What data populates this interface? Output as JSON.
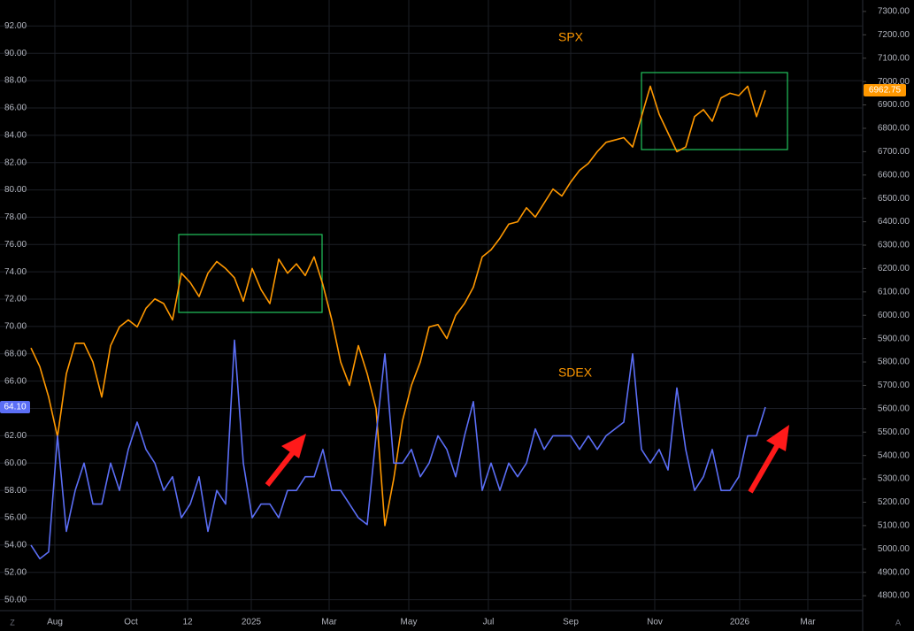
{
  "chart_data": {
    "type": "line",
    "x": [
      0,
      1,
      2,
      3,
      4,
      5,
      6,
      7,
      8,
      9,
      10,
      11,
      12,
      13,
      14,
      15,
      16,
      17,
      18,
      19,
      20,
      21,
      22,
      23,
      24,
      25,
      26,
      27,
      28,
      29,
      30,
      31,
      32,
      33,
      34,
      35,
      36,
      37,
      38,
      39,
      40,
      41,
      42,
      43,
      44,
      45,
      46,
      47,
      48,
      49,
      50,
      51,
      52,
      53,
      54,
      55,
      56,
      57,
      58,
      59,
      60,
      61,
      62,
      63,
      64,
      65,
      66,
      67,
      68,
      69,
      70,
      71,
      72,
      73,
      74,
      75,
      76,
      77,
      78,
      79,
      80,
      81,
      82,
      83
    ],
    "xlim": [
      -3.5,
      94
    ],
    "xticks": [
      {
        "value": 2.7,
        "label": "Aug"
      },
      {
        "value": 11.3,
        "label": "Oct"
      },
      {
        "value": 17.7,
        "label": "12"
      },
      {
        "value": 24.9,
        "label": "2025"
      },
      {
        "value": 33.7,
        "label": "Mar"
      },
      {
        "value": 42.7,
        "label": "May"
      },
      {
        "value": 51.7,
        "label": "Jul"
      },
      {
        "value": 61,
        "label": "Sep"
      },
      {
        "value": 70.5,
        "label": "Nov"
      },
      {
        "value": 80.1,
        "label": "2026"
      },
      {
        "value": 87.8,
        "label": "Mar"
      }
    ],
    "ylim": [
      49.2,
      93.9
    ],
    "yticks": [
      {
        "value": 50,
        "label": "50.00"
      },
      {
        "value": 52,
        "label": "52.00"
      },
      {
        "value": 54,
        "label": "54.00"
      },
      {
        "value": 56,
        "label": "56.00"
      },
      {
        "value": 58,
        "label": "58.00"
      },
      {
        "value": 60,
        "label": "60.00"
      },
      {
        "value": 62,
        "label": "62.00"
      },
      {
        "value": 64,
        "label": "64.00"
      },
      {
        "value": 66,
        "label": "66.00"
      },
      {
        "value": 68,
        "label": "68.00"
      },
      {
        "value": 70,
        "label": "70.00"
      },
      {
        "value": 72,
        "label": "72.00"
      },
      {
        "value": 74,
        "label": "74.00"
      },
      {
        "value": 76,
        "label": "76.00"
      },
      {
        "value": 78,
        "label": "78.00"
      },
      {
        "value": 80,
        "label": "80.00"
      },
      {
        "value": 82,
        "label": "82.00"
      },
      {
        "value": 84,
        "label": "84.00"
      },
      {
        "value": 86,
        "label": "86.00"
      },
      {
        "value": 88,
        "label": "88.00"
      },
      {
        "value": 90,
        "label": "90.00"
      },
      {
        "value": 92,
        "label": "92.00"
      }
    ],
    "y2lim": [
      4736,
      7349
    ],
    "y2ticks": [
      {
        "value": 4800,
        "label": "4800.00"
      },
      {
        "value": 4900,
        "label": "4900.00"
      },
      {
        "value": 5000,
        "label": "5000.00"
      },
      {
        "value": 5100,
        "label": "5100.00"
      },
      {
        "value": 5200,
        "label": "5200.00"
      },
      {
        "value": 5300,
        "label": "5300.00"
      },
      {
        "value": 5400,
        "label": "5400.00"
      },
      {
        "value": 5500,
        "label": "5500.00"
      },
      {
        "value": 5600,
        "label": "5600.00"
      },
      {
        "value": 5700,
        "label": "5700.00"
      },
      {
        "value": 5800,
        "label": "5800.00"
      },
      {
        "value": 5900,
        "label": "5900.00"
      },
      {
        "value": 6000,
        "label": "6000.00"
      },
      {
        "value": 6100,
        "label": "6100.00"
      },
      {
        "value": 6200,
        "label": "6200.00"
      },
      {
        "value": 6300,
        "label": "6300.00"
      },
      {
        "value": 6400,
        "label": "6400.00"
      },
      {
        "value": 6500,
        "label": "6500.00"
      },
      {
        "value": 6600,
        "label": "6600.00"
      },
      {
        "value": 6700,
        "label": "6700.00"
      },
      {
        "value": 6800,
        "label": "6800.00"
      },
      {
        "value": 6900,
        "label": "6900.00"
      },
      {
        "value": 7000,
        "label": "7000.00"
      },
      {
        "value": 7100,
        "label": "7100.00"
      },
      {
        "value": 7200,
        "label": "7200.00"
      },
      {
        "value": 7300,
        "label": "7300.00"
      }
    ],
    "grid": true,
    "series": [
      {
        "name": "SPX",
        "color": "#ff9800",
        "axis": "y2",
        "last_value_label": "6962.75",
        "values": [
          5860,
          5780,
          5650,
          5480,
          5750,
          5880,
          5880,
          5800,
          5650,
          5870,
          5950,
          5980,
          5950,
          6030,
          6070,
          6050,
          5980,
          6180,
          6140,
          6080,
          6180,
          6230,
          6200,
          6160,
          6060,
          6200,
          6110,
          6050,
          6240,
          6180,
          6220,
          6170,
          6250,
          6130,
          5980,
          5800,
          5700,
          5870,
          5750,
          5600,
          5100,
          5300,
          5550,
          5700,
          5800,
          5950,
          5960,
          5900,
          6000,
          6050,
          6120,
          6250,
          6280,
          6330,
          6390,
          6400,
          6460,
          6420,
          6480,
          6540,
          6510,
          6570,
          6620,
          6650,
          6700,
          6740,
          6750,
          6760,
          6720,
          6850,
          6980,
          6860,
          6780,
          6700,
          6720,
          6850,
          6880,
          6830,
          6930,
          6950,
          6940,
          6980,
          6850,
          6962.75
        ]
      },
      {
        "name": "SDEX",
        "color": "#5b6ef5",
        "last_value_label": "64.10",
        "values": [
          54,
          53,
          53.5,
          62,
          55,
          58,
          60,
          57,
          57,
          60,
          58,
          61,
          63,
          61,
          60,
          58,
          59,
          56,
          57,
          59,
          55,
          58,
          57,
          69,
          60,
          56,
          57,
          57,
          56,
          58,
          58,
          59,
          59,
          61,
          58,
          58,
          57,
          56,
          55.5,
          62,
          68,
          60,
          60,
          61,
          59,
          60,
          62,
          61,
          59,
          62,
          64.5,
          58,
          60,
          58,
          60,
          59,
          60,
          62.5,
          61,
          62,
          62,
          62,
          61,
          62,
          61,
          62,
          62.5,
          63,
          68,
          61,
          60,
          61,
          59.5,
          65.5,
          61,
          58,
          59,
          61,
          58,
          58,
          59,
          62,
          62,
          64.1
        ]
      }
    ],
    "ui": {
      "left_button": "Z",
      "right_button": "A"
    }
  }
}
